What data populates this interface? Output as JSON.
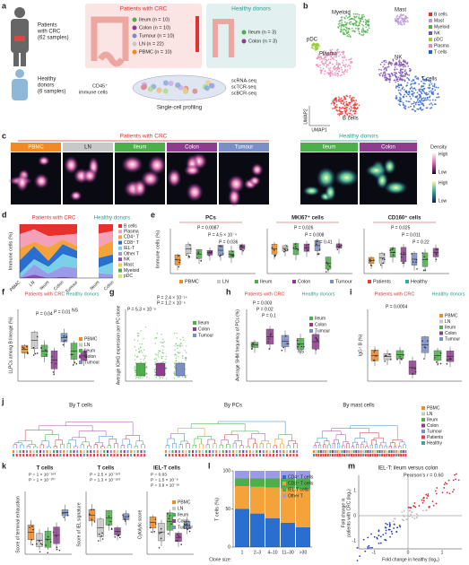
{
  "a": {
    "label": "a",
    "patients": [
      "Patients",
      "with CRC",
      "(62 samples)"
    ],
    "healthy": [
      "Healthy",
      "donors",
      "(6 samples)"
    ],
    "patients_title": "Patients with CRC",
    "healthy_title": "Healthy donors",
    "groups": [
      "Ileum (n = 10)",
      "Colon (n = 10)",
      "Tumour (n = 10)",
      "LN (n = 22)",
      "PBMC (n = 10)"
    ],
    "healthy_groups": [
      "Ileum (n = 3)",
      "Colon (n = 3)"
    ],
    "cells": [
      "CD45⁺",
      "immune cells"
    ],
    "seq": [
      "scRNA-seq",
      "scTCR-seq",
      "scBCR-seq"
    ],
    "profiling": "Single-cell profiling"
  },
  "b": {
    "label": "b",
    "clusters": [
      "Myeloid",
      "Mast",
      "pDC",
      "Plasma",
      "NK",
      "T cells",
      "B cells"
    ],
    "legend": [
      "B cells",
      "Mast",
      "Myeloid",
      "NK",
      "pDC",
      "Plasma",
      "T cells"
    ],
    "xaxis": "UMAP1",
    "yaxis": "UMAP2"
  },
  "c": {
    "label": "c",
    "patients_title": "Patients with CRC",
    "healthy_title": "Healthy donors",
    "tissues": [
      "PBMC",
      "LN",
      "Ileum",
      "Colon",
      "Tumour"
    ],
    "healthy_tissues": [
      "Ileum",
      "Colon"
    ],
    "density": "Density",
    "high": "High",
    "low": "Low",
    "high2": "High",
    "low2": "Low"
  },
  "d": {
    "label": "d",
    "ylabel": "Immune cells (%)",
    "patients_title": "Patients with CRC",
    "healthy_title": "Healthy donors",
    "legend": [
      "B cells",
      "Plasma",
      "CD4⁺ T",
      "CD8⁺ T",
      "IEL-T",
      "Other T",
      "NK",
      "Mast",
      "Myeloid",
      "pDC"
    ],
    "xticks": [
      "PBMC",
      "LN",
      "Ileum",
      "Colon",
      "Tumour",
      "Ileum",
      "Colon"
    ]
  },
  "e": {
    "label": "e",
    "ylabel": "Immune cells (%)",
    "panels": [
      {
        "title": "PCs",
        "p": [
          "P = 0.0087",
          "P = 4.5 × 10⁻⁴",
          "P = 0.036"
        ]
      },
      {
        "title": "MKI67⁺ cells",
        "p": [
          "P = 0.026",
          "P = 0.008",
          "P = 0.41"
        ]
      },
      {
        "title": "CD160⁺ cells",
        "p": [
          "P = 0.025",
          "P = 0.011",
          "P = 0.22"
        ]
      }
    ],
    "legend": [
      "PBMC",
      "LN",
      "Ileum",
      "Colon",
      "Tumour",
      "Patients",
      "Healthy"
    ]
  },
  "f": {
    "label": "f",
    "ylabel": "LLPCs among B lineage (%)",
    "patients_title": "Patients with CRC",
    "healthy_title": "Healthy donors",
    "p": [
      "P = 0.04",
      "P = 0.01",
      "NS"
    ],
    "legend": [
      "PBMC",
      "LN",
      "Ileum",
      "Colon",
      "Tumour"
    ]
  },
  "g": {
    "label": "g",
    "ylabel": "Average IGHG expression per PC clone",
    "p": [
      "P = 2.4 × 10⁻¹⁴",
      "P = 1.2 × 10⁻⁵",
      "P = 5.3 × 10⁻⁸"
    ],
    "legend": [
      "Ileum",
      "Colon",
      "Tumour"
    ]
  },
  "h": {
    "label": "h",
    "ylabel": "Average SHM frequency of PCs (%)",
    "patients_title": "Patients with CRC",
    "healthy_title": "Healthy donors",
    "p": [
      "P = 0.003",
      "P = 0.02",
      "P = 0.1",
      "NS"
    ],
    "legend": [
      "Ileum",
      "Colon",
      "Tumour"
    ]
  },
  "i": {
    "label": "i",
    "ylabel": "IgG⁺ B (%)",
    "patients_title": "Patients with CRC",
    "healthy_title": "Healthy donors",
    "p": [
      "P = 0.0004"
    ],
    "legend": [
      "PBMC",
      "LN",
      "Ileum",
      "Colon",
      "Tumour"
    ]
  },
  "j": {
    "label": "j",
    "titles": [
      "By T cells",
      "By PCs",
      "By mast cells"
    ],
    "legend": [
      "PBMC",
      "LN",
      "Ileum",
      "Colon",
      "Tumour",
      "Patients",
      "Healthy"
    ]
  },
  "k": {
    "label": "k",
    "panels": [
      {
        "title": "T cells",
        "ylabel": "Score of terminal exhaustion",
        "p": [
          "P = 1 × 10⁻¹⁸³",
          "P = 1 × 10⁻¹⁰⁷"
        ]
      },
      {
        "title": "T cells",
        "ylabel": "Score of IEL signature",
        "p": [
          "P = 2.5 × 10⁻¹⁸³",
          "P = 1.3 × 10⁻¹⁸³"
        ]
      },
      {
        "title": "IEL-T cells",
        "ylabel": "Cytolytic score",
        "p": [
          "P = 0.03",
          "P = 1.5 × 10⁻⁸",
          "P = 3.9 × 10⁻¹⁸"
        ]
      }
    ],
    "legend": [
      "PBMC",
      "LN",
      "Ileum",
      "Colon",
      "Tumour"
    ]
  },
  "l": {
    "label": "l",
    "ylabel": "T cells (%)",
    "xlabel": "Clone size:",
    "xticks": [
      "1",
      "2–3",
      "4–10",
      "11–30",
      ">30"
    ],
    "yticks": [
      0,
      50,
      100
    ],
    "legend": [
      "CD4⁺ T cells",
      "CD8⁺ T cells",
      "IEL-T cells",
      "Other T"
    ]
  },
  "m": {
    "label": "m",
    "title": "IEL-T: ileum versus colon",
    "r": "Pearson's r = 0.60",
    "ylabel": [
      "Fold change in",
      "patients with CRC (log₂)"
    ],
    "xlabel": "Fold change in healthy (log₂)",
    "xticks": [
      -1,
      0,
      1
    ],
    "yticks": [
      -1,
      0,
      1
    ]
  }
}
